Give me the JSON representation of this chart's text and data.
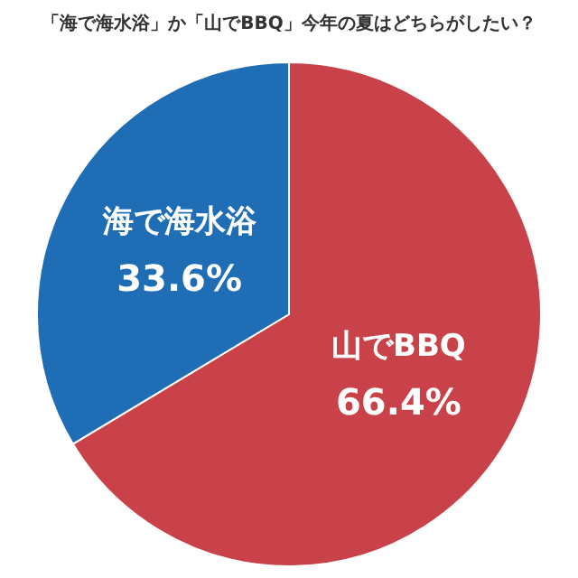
{
  "chart_data": {
    "type": "pie",
    "title": "「海で海水浴」か「山でBBQ」今年の夏はどちらがしたい？",
    "categories": [
      "山でBBQ",
      "海で海水浴"
    ],
    "values": [
      66.4,
      33.6
    ],
    "colors": [
      "#c9424a",
      "#1f6db5"
    ],
    "value_labels": [
      "66.4%",
      "33.6%"
    ],
    "legend": false
  }
}
